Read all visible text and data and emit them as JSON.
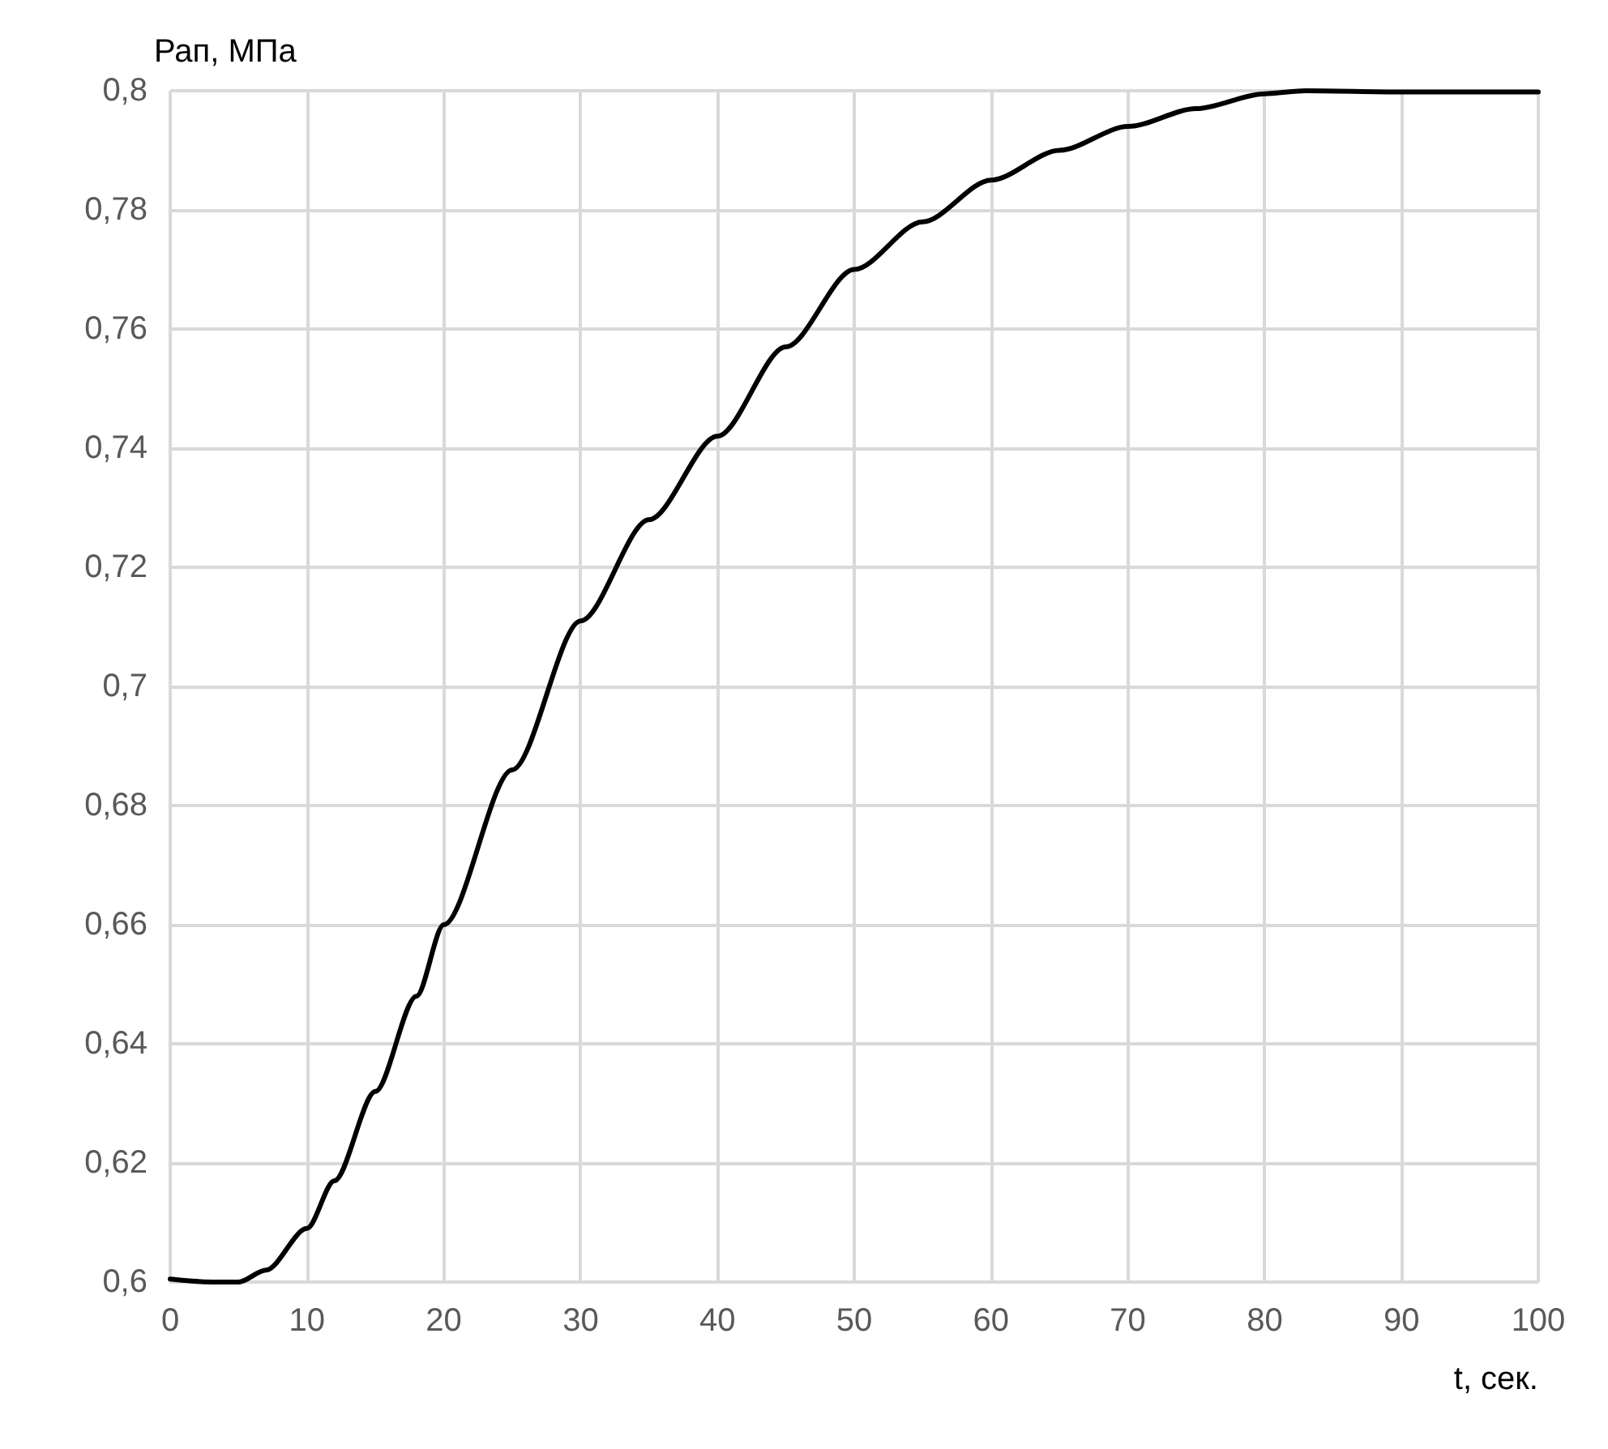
{
  "chart_data": {
    "type": "line",
    "ylabel": "Рап, МПа",
    "xlabel": "t, сек.",
    "x": [
      0,
      3,
      5,
      7,
      10,
      12,
      15,
      18,
      20,
      25,
      30,
      35,
      40,
      45,
      50,
      55,
      60,
      65,
      70,
      75,
      80,
      83,
      90,
      100
    ],
    "series": [
      {
        "color": "#000000",
        "values": [
          0.6005,
          0.6,
          0.6,
          0.602,
          0.609,
          0.617,
          0.632,
          0.648,
          0.66,
          0.686,
          0.711,
          0.728,
          0.742,
          0.757,
          0.77,
          0.778,
          0.785,
          0.79,
          0.794,
          0.797,
          0.7995,
          0.8,
          0.7998,
          0.7998
        ]
      }
    ],
    "xlim": [
      0,
      100
    ],
    "xticks": [
      0,
      10,
      20,
      30,
      40,
      50,
      60,
      70,
      80,
      90,
      100
    ],
    "ylim": [
      0.6,
      0.8
    ],
    "yticks": [
      {
        "value": 0.6,
        "label": "0,6"
      },
      {
        "value": 0.62,
        "label": "0,62"
      },
      {
        "value": 0.64,
        "label": "0,64"
      },
      {
        "value": 0.66,
        "label": "0,66"
      },
      {
        "value": 0.68,
        "label": "0,68"
      },
      {
        "value": 0.7,
        "label": "0,7"
      },
      {
        "value": 0.72,
        "label": "0,72"
      },
      {
        "value": 0.74,
        "label": "0,74"
      },
      {
        "value": 0.76,
        "label": "0,76"
      },
      {
        "value": 0.78,
        "label": "0,78"
      },
      {
        "value": 0.8,
        "label": "0,8"
      }
    ],
    "grid": true,
    "marker": "none",
    "line_style": "solid"
  }
}
